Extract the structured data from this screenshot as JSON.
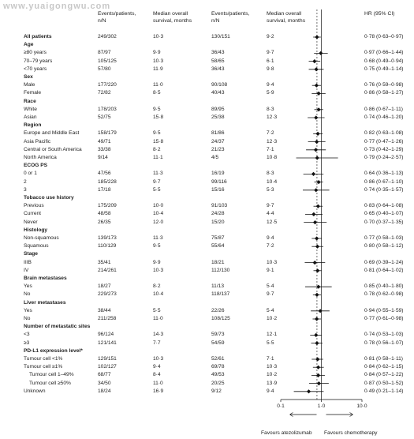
{
  "watermark": "www.yuaigongwu.com",
  "headers": {
    "events_atezo": [
      "Events/patients,",
      "n/N"
    ],
    "median_atezo": [
      "Median overall",
      "survival, months"
    ],
    "events_chemo": [
      "Events/patients,",
      "n/N"
    ],
    "median_chemo": [
      "Median overall",
      "survival, months"
    ],
    "hr": "HR (95% CI)"
  },
  "chart_data": {
    "type": "forest",
    "x_scale": "log",
    "xlim": [
      0.1,
      10.0
    ],
    "reference_line": 1.0,
    "x_ticks": [
      "0·1",
      "1·0",
      "10·0"
    ],
    "favours_left": "Favours atezolizumab",
    "favours_right": "Favours chemotherapy",
    "rows": [
      {
        "label": "All patients",
        "bold": true,
        "indent": 0,
        "ev1": "249/302",
        "med1": "10·3",
        "ev2": "130/151",
        "med2": "9·2",
        "hr": 0.78,
        "lo": 0.63,
        "hi": 0.97,
        "hr_text": "0·78 (0·63–0·97)"
      },
      {
        "label": "Age",
        "bold": true,
        "indent": 0
      },
      {
        "label": "≥80 years",
        "indent": 0,
        "ev1": "87/97",
        "med1": "9·9",
        "ev2": "36/43",
        "med2": "9·7",
        "hr": 0.97,
        "lo": 0.66,
        "hi": 1.44,
        "hr_text": "0·97 (0·66–1·44)"
      },
      {
        "label": "70–79 years",
        "indent": 0,
        "ev1": "105/125",
        "med1": "10·3",
        "ev2": "58/65",
        "med2": "6·1",
        "hr": 0.68,
        "lo": 0.49,
        "hi": 0.94,
        "hr_text": "0·68 (0·49–0·94)"
      },
      {
        "label": "<70 years",
        "indent": 0,
        "ev1": "57/80",
        "med1": "11·9",
        "ev2": "36/43",
        "med2": "9·8",
        "hr": 0.75,
        "lo": 0.49,
        "hi": 1.14,
        "hr_text": "0·75 (0·49–1·14)"
      },
      {
        "label": "Sex",
        "bold": true,
        "indent": 0
      },
      {
        "label": "Male",
        "indent": 0,
        "ev1": "177/220",
        "med1": "11·0",
        "ev2": "90/108",
        "med2": "9·4",
        "hr": 0.76,
        "lo": 0.59,
        "hi": 0.98,
        "hr_text": "0·76 (0·59–0·98)"
      },
      {
        "label": "Female",
        "indent": 0,
        "ev1": "72/82",
        "med1": "8·5",
        "ev2": "40/43",
        "med2": "5·9",
        "hr": 0.86,
        "lo": 0.58,
        "hi": 1.27,
        "hr_text": "0·86 (0·58–1·27)"
      },
      {
        "label": "Race",
        "bold": true,
        "indent": 0
      },
      {
        "label": "White",
        "indent": 0,
        "ev1": "178/203",
        "med1": "9·5",
        "ev2": "89/95",
        "med2": "8·3",
        "hr": 0.86,
        "lo": 0.67,
        "hi": 1.11,
        "hr_text": "0·86 (0·67–1·11)"
      },
      {
        "label": "Asian",
        "indent": 0,
        "ev1": "52/75",
        "med1": "15·8",
        "ev2": "25/38",
        "med2": "12·3",
        "hr": 0.74,
        "lo": 0.46,
        "hi": 1.2,
        "hr_text": "0·74 (0·46–1·20)"
      },
      {
        "label": "Region",
        "bold": true,
        "indent": 0
      },
      {
        "label": "Europe and Middle East",
        "indent": 0,
        "ev1": "158/179",
        "med1": "9·5",
        "ev2": "81/86",
        "med2": "7·2",
        "hr": 0.82,
        "lo": 0.63,
        "hi": 1.08,
        "hr_text": "0·82 (0·63–1·08)"
      },
      {
        "label": "Asia Pacific",
        "indent": 0,
        "ev1": "49/71",
        "med1": "15·8",
        "ev2": "24/37",
        "med2": "12·3",
        "hr": 0.77,
        "lo": 0.47,
        "hi": 1.26,
        "hr_text": "0·77 (0·47–1·26)"
      },
      {
        "label": "Central or South America",
        "indent": 0,
        "ev1": "33/38",
        "med1": "8·2",
        "ev2": "21/23",
        "med2": "7·1",
        "hr": 0.73,
        "lo": 0.42,
        "hi": 1.29,
        "hr_text": "0·73 (0·42–1·29)"
      },
      {
        "label": "North America",
        "indent": 0,
        "ev1": "9/14",
        "med1": "11·1",
        "ev2": "4/5",
        "med2": "10·8",
        "hr": 0.79,
        "lo": 0.24,
        "hi": 2.57,
        "hr_text": "0·79 (0·24–2·57)"
      },
      {
        "label": "ECOG PS",
        "bold": true,
        "indent": 0
      },
      {
        "label": "0 or 1",
        "indent": 0,
        "ev1": "47/56",
        "med1": "11·3",
        "ev2": "16/19",
        "med2": "8·3",
        "hr": 0.64,
        "lo": 0.36,
        "hi": 1.13,
        "hr_text": "0·64 (0·36–1·13)"
      },
      {
        "label": "2",
        "indent": 0,
        "ev1": "185/228",
        "med1": "9·7",
        "ev2": "99/116",
        "med2": "10·4",
        "hr": 0.86,
        "lo": 0.67,
        "hi": 1.1,
        "hr_text": "0·86 (0·67–1·10)"
      },
      {
        "label": "3",
        "indent": 0,
        "ev1": "17/18",
        "med1": "5·5",
        "ev2": "15/16",
        "med2": "5·3",
        "hr": 0.74,
        "lo": 0.35,
        "hi": 1.57,
        "hr_text": "0·74 (0·35–1·57)"
      },
      {
        "label": "Tobacco use history",
        "bold": true,
        "indent": 0
      },
      {
        "label": "Previous",
        "indent": 0,
        "ev1": "175/209",
        "med1": "10·0",
        "ev2": "91/103",
        "med2": "9·7",
        "hr": 0.83,
        "lo": 0.64,
        "hi": 1.08,
        "hr_text": "0·83 (0·64–1·08)"
      },
      {
        "label": "Current",
        "indent": 0,
        "ev1": "48/58",
        "med1": "10·4",
        "ev2": "24/28",
        "med2": "4·4",
        "hr": 0.65,
        "lo": 0.4,
        "hi": 1.07,
        "hr_text": "0·65 (0·40–1·07)"
      },
      {
        "label": "Never",
        "indent": 0,
        "ev1": "26/35",
        "med1": "12·0",
        "ev2": "15/20",
        "med2": "12·5",
        "hr": 0.7,
        "lo": 0.37,
        "hi": 1.35,
        "hr_text": "0·70 (0·37–1·35)"
      },
      {
        "label": "Histology",
        "bold": true,
        "indent": 0
      },
      {
        "label": "Non-squamous",
        "indent": 0,
        "ev1": "139/173",
        "med1": "11·3",
        "ev2": "75/87",
        "med2": "9·4",
        "hr": 0.77,
        "lo": 0.58,
        "hi": 1.03,
        "hr_text": "0·77 (0·58–1·03)"
      },
      {
        "label": "Squamous",
        "indent": 0,
        "ev1": "110/129",
        "med1": "9·5",
        "ev2": "55/64",
        "med2": "7·2",
        "hr": 0.8,
        "lo": 0.58,
        "hi": 1.12,
        "hr_text": "0·80 (0·58–1·12)"
      },
      {
        "label": "Stage",
        "bold": true,
        "indent": 0
      },
      {
        "label": "IIIB",
        "indent": 0,
        "ev1": "35/41",
        "med1": "9·9",
        "ev2": "18/21",
        "med2": "10·3",
        "hr": 0.69,
        "lo": 0.39,
        "hi": 1.24,
        "hr_text": "0·69 (0·39–1·24)"
      },
      {
        "label": "IV",
        "indent": 0,
        "ev1": "214/261",
        "med1": "10·3",
        "ev2": "112/130",
        "med2": "9·1",
        "hr": 0.81,
        "lo": 0.64,
        "hi": 1.02,
        "hr_text": "0·81 (0·64–1·02)"
      },
      {
        "label": "Brain metastases",
        "bold": true,
        "indent": 0
      },
      {
        "label": "Yes",
        "indent": 0,
        "ev1": "18/27",
        "med1": "8·2",
        "ev2": "11/13",
        "med2": "5·4",
        "hr": 0.85,
        "lo": 0.4,
        "hi": 1.8,
        "hr_text": "0·85 (0·40–1·80)"
      },
      {
        "label": "No",
        "indent": 0,
        "ev1": "229/273",
        "med1": "10·4",
        "ev2": "118/137",
        "med2": "9·7",
        "hr": 0.78,
        "lo": 0.62,
        "hi": 0.98,
        "hr_text": "0·78 (0·62–0·98)"
      },
      {
        "label": "Liver metastases",
        "bold": true,
        "indent": 0
      },
      {
        "label": "Yes",
        "indent": 0,
        "ev1": "38/44",
        "med1": "5·5",
        "ev2": "22/26",
        "med2": "5·4",
        "hr": 0.94,
        "lo": 0.55,
        "hi": 1.59,
        "hr_text": "0·94 (0·55–1·59)"
      },
      {
        "label": "No",
        "indent": 0,
        "ev1": "211/258",
        "med1": "11·0",
        "ev2": "108/125",
        "med2": "10·2",
        "hr": 0.77,
        "lo": 0.61,
        "hi": 0.98,
        "hr_text": "0·77 (0·61–0·98)"
      },
      {
        "label": "Number of metastatic sites",
        "bold": true,
        "indent": 0
      },
      {
        "label": "<3",
        "indent": 0,
        "ev1": "96/124",
        "med1": "14·3",
        "ev2": "59/73",
        "med2": "12·1",
        "hr": 0.74,
        "lo": 0.53,
        "hi": 1.03,
        "hr_text": "0·74 (0·53–1·03)"
      },
      {
        "label": "≥3",
        "indent": 0,
        "ev1": "121/141",
        "med1": "7·7",
        "ev2": "54/59",
        "med2": "5·5",
        "hr": 0.78,
        "lo": 0.56,
        "hi": 1.07,
        "hr_text": "0·78 (0·56–1·07)"
      },
      {
        "label": "PD-L1 expression level*",
        "bold": true,
        "indent": 0
      },
      {
        "label": "Tumour cell <1%",
        "indent": 0,
        "ev1": "129/151",
        "med1": "10·3",
        "ev2": "52/61",
        "med2": "7·1",
        "hr": 0.81,
        "lo": 0.58,
        "hi": 1.11,
        "hr_text": "0·81 (0·58–1·11)"
      },
      {
        "label": "Tumour cell ≥1%",
        "indent": 0,
        "ev1": "102/127",
        "med1": "9·4",
        "ev2": "69/78",
        "med2": "10·3",
        "hr": 0.84,
        "lo": 0.62,
        "hi": 1.15,
        "hr_text": "0·84 (0·62–1·15)"
      },
      {
        "label": "Tumour cell 1–49%",
        "indent": 1,
        "ev1": "68/77",
        "med1": "8·4",
        "ev2": "49/53",
        "med2": "10·2",
        "hr": 0.84,
        "lo": 0.57,
        "hi": 1.22,
        "hr_text": "0·84 (0·57–1·22)"
      },
      {
        "label": "Tumour cell ≥50%",
        "indent": 1,
        "ev1": "34/50",
        "med1": "11·0",
        "ev2": "20/25",
        "med2": "13·9",
        "hr": 0.87,
        "lo": 0.5,
        "hi": 1.52,
        "hr_text": "0·87 (0·50–1·52)"
      },
      {
        "label": "Unknown",
        "indent": 0,
        "ev1": "18/24",
        "med1": "16·9",
        "ev2": "9/12",
        "med2": "9·4",
        "hr": 0.49,
        "lo": 0.21,
        "hi": 1.14,
        "hr_text": "0·49 (0·21–1·14)"
      }
    ]
  }
}
